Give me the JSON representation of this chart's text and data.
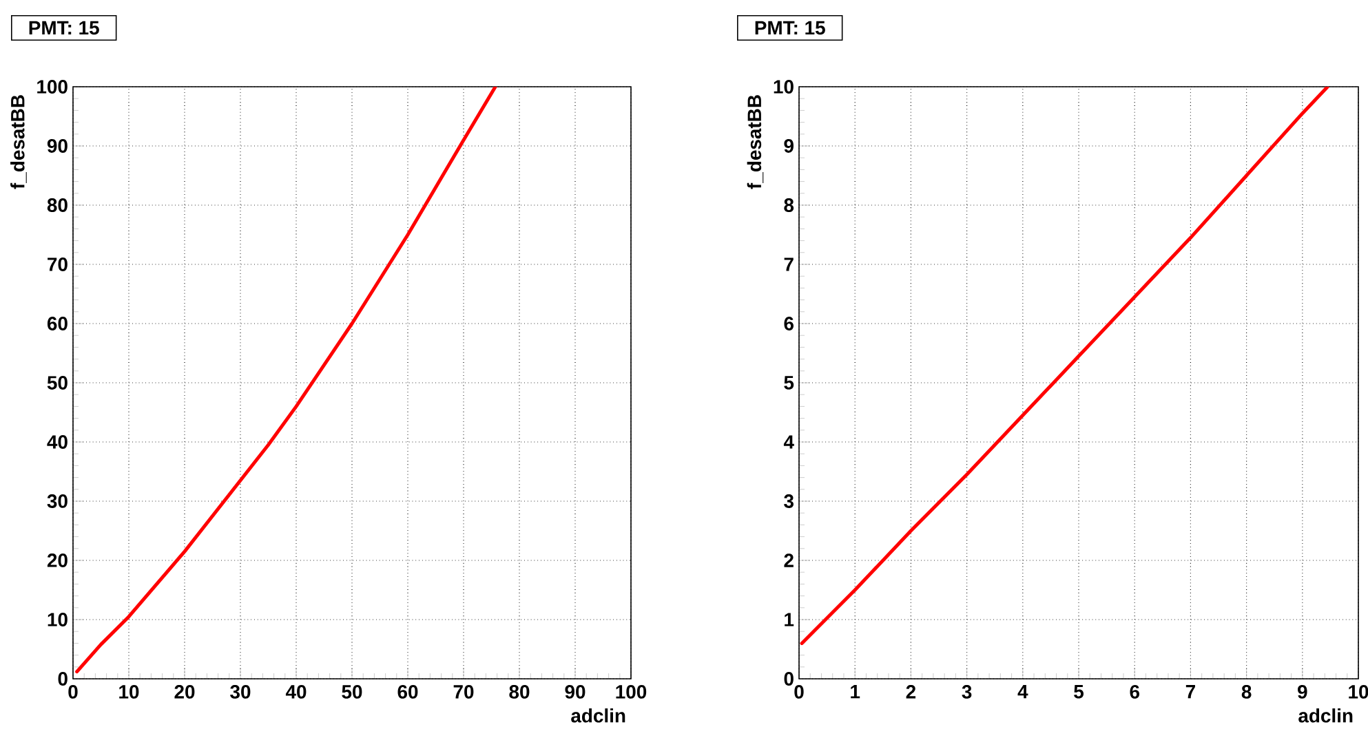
{
  "chart_data": [
    {
      "type": "line",
      "title": "PMT: 15",
      "xlabel": "adclin",
      "ylabel": "f_desatBB",
      "xlim": [
        0,
        100
      ],
      "ylim": [
        0,
        100
      ],
      "xticks": [
        0,
        10,
        20,
        30,
        40,
        50,
        60,
        70,
        80,
        90,
        100
      ],
      "yticks": [
        0,
        10,
        20,
        30,
        40,
        50,
        60,
        70,
        80,
        90,
        100
      ],
      "grid": true,
      "series": [
        {
          "color": "#ff0000",
          "x": [
            0.7,
            5,
            10,
            15,
            20,
            25,
            30,
            35,
            40,
            45,
            50,
            55,
            60,
            65,
            70,
            75.7
          ],
          "values": [
            1.2,
            5.8,
            10.5,
            16,
            21.5,
            27.5,
            33.5,
            39.5,
            46,
            53,
            60,
            67.5,
            75,
            83,
            91,
            100
          ]
        }
      ]
    },
    {
      "type": "line",
      "title": "PMT: 15",
      "xlabel": "adclin",
      "ylabel": "f_desatBB",
      "xlim": [
        0,
        10
      ],
      "ylim": [
        0,
        10
      ],
      "xticks": [
        0,
        1,
        2,
        3,
        4,
        5,
        6,
        7,
        8,
        9,
        10
      ],
      "yticks": [
        0,
        1,
        2,
        3,
        4,
        5,
        6,
        7,
        8,
        9,
        10
      ],
      "grid": true,
      "series": [
        {
          "color": "#ff0000",
          "x": [
            0.05,
            1,
            2,
            3,
            4,
            5,
            6,
            7,
            8,
            9,
            9.45
          ],
          "values": [
            0.6,
            1.5,
            2.5,
            3.45,
            4.45,
            5.45,
            6.45,
            7.45,
            8.5,
            9.55,
            10
          ]
        }
      ]
    }
  ]
}
